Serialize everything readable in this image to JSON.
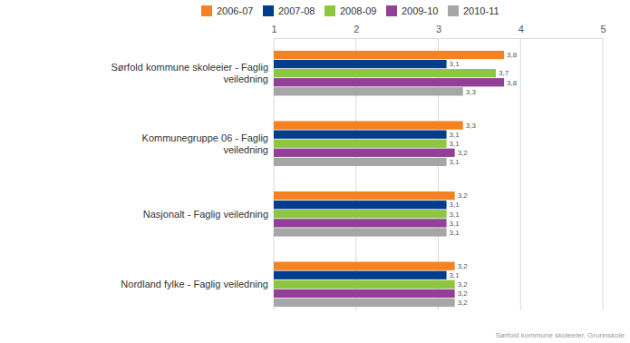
{
  "chart_data": {
    "type": "bar",
    "orientation": "horizontal",
    "categories": [
      "Sørfold kommune skoleeier - Faglig veiledning",
      "Kommunegruppe 06 - Faglig veiledning",
      "Nasjonalt - Faglig veiledning",
      "Nordland fylke - Faglig veiledning"
    ],
    "series": [
      {
        "name": "2006-07",
        "color": "#f58220",
        "values": [
          3.8,
          3.3,
          3.2,
          3.2
        ],
        "value_labels": [
          "3,8",
          "3,3",
          "3,2",
          "3,2"
        ]
      },
      {
        "name": "2007-08",
        "color": "#003d8f",
        "values": [
          3.1,
          3.1,
          3.1,
          3.1
        ],
        "value_labels": [
          "3,1",
          "3,1",
          "3,1",
          "3,1"
        ]
      },
      {
        "name": "2008-09",
        "color": "#8dc63f",
        "values": [
          3.7,
          3.1,
          3.1,
          3.2
        ],
        "value_labels": [
          "3,7",
          "3,1",
          "3,1",
          "3,2"
        ]
      },
      {
        "name": "2009-10",
        "color": "#923f98",
        "values": [
          3.8,
          3.2,
          3.1,
          3.2
        ],
        "value_labels": [
          "3,8",
          "3,2",
          "3,1",
          "3,2"
        ]
      },
      {
        "name": "2010-11",
        "color": "#a6a6a6",
        "values": [
          3.3,
          3.1,
          3.1,
          3.2
        ],
        "value_labels": [
          "3,3",
          "3,1",
          "3,1",
          "3,2"
        ]
      }
    ],
    "xlim": [
      1,
      5
    ],
    "xticks": [
      1,
      2,
      3,
      4,
      5
    ],
    "grid": true,
    "legend": "top",
    "data_labels": true,
    "annotations": [
      "Sørfold kommune skoleeier, Grunnskole"
    ]
  }
}
